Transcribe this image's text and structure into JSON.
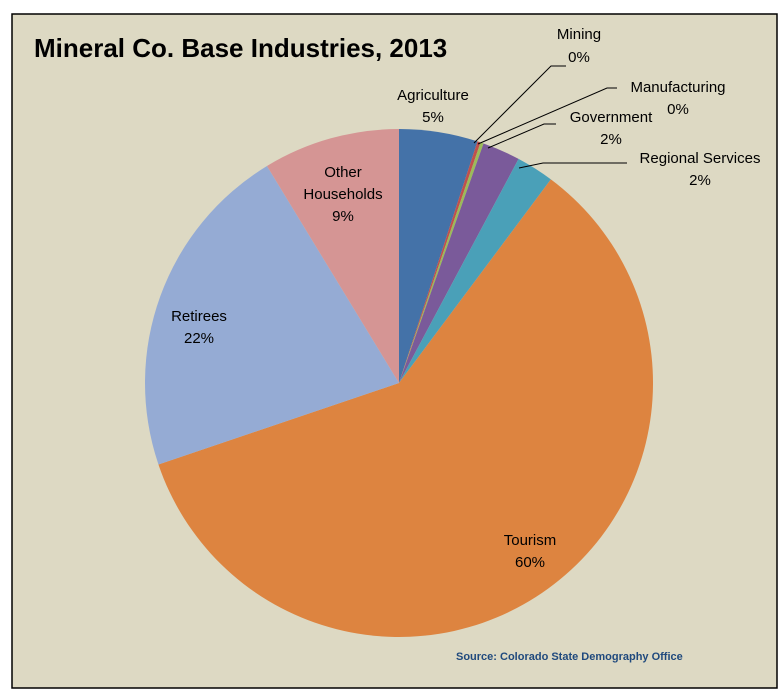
{
  "colors": {
    "plot_background": "#ddd9c3",
    "frame_border": "#000000",
    "source_text": "#1f497d"
  },
  "chart_data": {
    "type": "pie",
    "title": "Mineral Co. Base Industries, 2013",
    "source": "Source: Colorado State Demography Office",
    "slices": [
      {
        "name": "Agriculture",
        "value": 5,
        "label": "5%",
        "color": "#4472a8"
      },
      {
        "name": "Mining",
        "value": 0.2,
        "label": "0%",
        "color": "#c0504d"
      },
      {
        "name": "Manufacturing",
        "value": 0.2,
        "label": "0%",
        "color": "#9bbb59"
      },
      {
        "name": "Government",
        "value": 2.4,
        "label": "2%",
        "color": "#7a5a9a"
      },
      {
        "name": "Regional Services",
        "value": 2.4,
        "label": "2%",
        "color": "#4aa0b8"
      },
      {
        "name": "Tourism",
        "value": 59.6,
        "label": "60%",
        "color": "#dd8440"
      },
      {
        "name": "Retirees",
        "value": 21.5,
        "label": "22%",
        "color": "#95abd4"
      },
      {
        "name": "Other Households",
        "value": 8.7,
        "label": "9%",
        "color": "#d59594"
      }
    ]
  }
}
